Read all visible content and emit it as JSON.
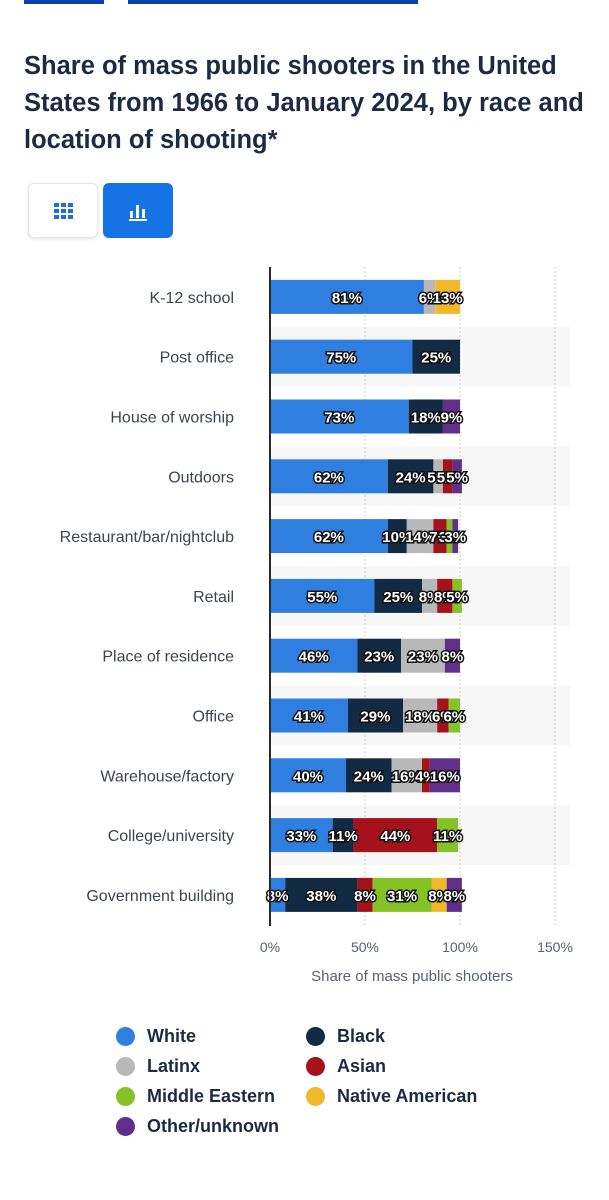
{
  "header": {
    "title": "Share of mass public shooters in the United States from 1966 to January 2024, by race and location of shooting*"
  },
  "view_toggle": {
    "table_icon": "table-grid-icon",
    "chart_icon": "bar-chart-icon",
    "active": "chart"
  },
  "colors": {
    "White": "#2e7fdf",
    "Black": "#132a45",
    "Latinx": "#b8b8b8",
    "Asian": "#a5121b",
    "Middle Eastern": "#84c226",
    "Native American": "#f0b82a",
    "Other/unknown": "#5f2f8a"
  },
  "chart_data": {
    "type": "bar",
    "orientation": "horizontal",
    "stacked": true,
    "title": "Share of mass public shooters in the United States from 1966 to January 2024, by race and location of shooting*",
    "xlabel": "Share of mass public shooters",
    "ylabel": "",
    "xlim": [
      0,
      150
    ],
    "xticks": [
      "0%",
      "50%",
      "100%",
      "150%"
    ],
    "grid": true,
    "legend_position": "bottom",
    "categories": [
      "K-12 school",
      "Post office",
      "House of worship",
      "Outdoors",
      "Restaurant/bar/nightclub",
      "Retail",
      "Place of residence",
      "Office",
      "Warehouse/factory",
      "College/university",
      "Government building"
    ],
    "series": [
      {
        "name": "White",
        "values": [
          81,
          75,
          73,
          62,
          62,
          55,
          46,
          41,
          40,
          33,
          8
        ]
      },
      {
        "name": "Black",
        "values": [
          0,
          25,
          18,
          24,
          10,
          25,
          23,
          29,
          24,
          11,
          38
        ]
      },
      {
        "name": "Latinx",
        "values": [
          6,
          0,
          0,
          5,
          14,
          8,
          23,
          18,
          16,
          0,
          0
        ]
      },
      {
        "name": "Asian",
        "values": [
          0,
          0,
          0,
          5,
          7,
          8,
          0,
          6,
          4,
          44,
          8
        ]
      },
      {
        "name": "Middle Eastern",
        "values": [
          0,
          0,
          0,
          0,
          3,
          5,
          0,
          6,
          0,
          11,
          31
        ]
      },
      {
        "name": "Native American",
        "values": [
          13,
          0,
          0,
          0,
          0,
          0,
          0,
          0,
          0,
          0,
          8
        ]
      },
      {
        "name": "Other/unknown",
        "values": [
          0,
          0,
          9,
          5,
          3,
          0,
          8,
          0,
          16,
          0,
          8
        ]
      }
    ],
    "data_labels": [
      [
        "81%",
        "",
        "6%",
        "",
        "",
        "13%",
        ""
      ],
      [
        "75%",
        "25%",
        "",
        "",
        "",
        "",
        ""
      ],
      [
        "73%",
        "18%",
        "",
        "",
        "",
        "",
        "9%"
      ],
      [
        "62%",
        "24%",
        "5%",
        "5%",
        "",
        "",
        "5%"
      ],
      [
        "62%",
        "10%",
        "14%",
        "7%",
        "3%",
        "",
        "3%"
      ],
      [
        "55%",
        "25%",
        "8%",
        "8%",
        "5%",
        "",
        ""
      ],
      [
        "46%",
        "23%",
        "23%",
        "",
        "",
        "",
        "8%"
      ],
      [
        "41%",
        "29%",
        "18%",
        "6%",
        "6%",
        "",
        ""
      ],
      [
        "40%",
        "24%",
        "16%",
        "4%",
        "",
        "",
        "16%"
      ],
      [
        "33%",
        "11%",
        "",
        "44%",
        "11%",
        "",
        ""
      ],
      [
        "8%",
        "38%",
        "",
        "8%",
        "31%",
        "8%",
        "8%"
      ]
    ]
  },
  "legend": {
    "items": [
      "White",
      "Black",
      "Latinx",
      "Asian",
      "Middle Eastern",
      "Native American",
      "Other/unknown"
    ]
  }
}
